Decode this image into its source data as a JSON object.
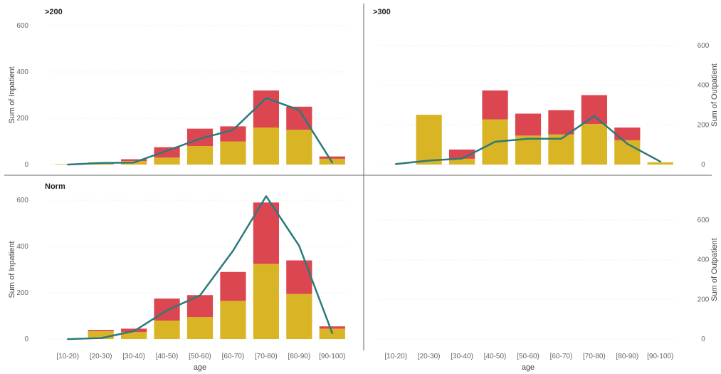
{
  "chart_data": {
    "type": "bar",
    "layout": "small-multiples 2x2, stacked bars (left axis) with line (right axis)",
    "categories": [
      "[10-20)",
      "[20-30)",
      "[30-40)",
      "[40-50)",
      "[50-60)",
      "[60-70)",
      "[70-80)",
      "[80-90)",
      "[90-100)"
    ],
    "xlabel": "age",
    "y_left_label": "Sum of Inpatient",
    "y_right_label": "Sum of Outpatient",
    "y_left_ticks": [
      0,
      200,
      400,
      600
    ],
    "y_right_ticks": [
      0,
      200,
      400,
      600
    ],
    "y_left_range": [
      0,
      600
    ],
    "y_right_range": [
      0,
      700
    ],
    "colors": {
      "stack_lower": "#D9B526",
      "stack_upper": "#DC4650",
      "line": "#2C7A7B"
    },
    "series_roles": [
      "stack_lower",
      "stack_upper",
      "line"
    ],
    "grid": true,
    "legend": "none",
    "panels": [
      {
        "title": ">200",
        "series": [
          {
            "values": [
              2,
              10,
              15,
              30,
              80,
              100,
              160,
              150,
              25
            ]
          },
          {
            "values": [
              0,
              0,
              8,
              45,
              75,
              65,
              160,
              100,
              10
            ]
          },
          {
            "values": [
              0,
              8,
              10,
              70,
              130,
              175,
              335,
              275,
              10
            ]
          }
        ]
      },
      {
        "title": ">300",
        "series": [
          {
            "values": [
              0,
              215,
              25,
              195,
              125,
              130,
              175,
              105,
              10
            ]
          },
          {
            "values": [
              0,
              0,
              40,
              125,
              95,
              105,
              125,
              55,
              0
            ]
          },
          {
            "values": [
              3,
              20,
              30,
              115,
              130,
              130,
              245,
              105,
              15
            ]
          }
        ]
      },
      {
        "title": "Norm",
        "series": [
          {
            "values": [
              0,
              35,
              30,
              80,
              95,
              165,
              325,
              195,
              45
            ]
          },
          {
            "values": [
              0,
              5,
              15,
              95,
              95,
              125,
              265,
              145,
              10
            ]
          },
          {
            "values": [
              0,
              5,
              40,
              145,
              220,
              445,
              720,
              470,
              30
            ]
          }
        ]
      },
      {
        "title": "",
        "series": []
      }
    ]
  }
}
